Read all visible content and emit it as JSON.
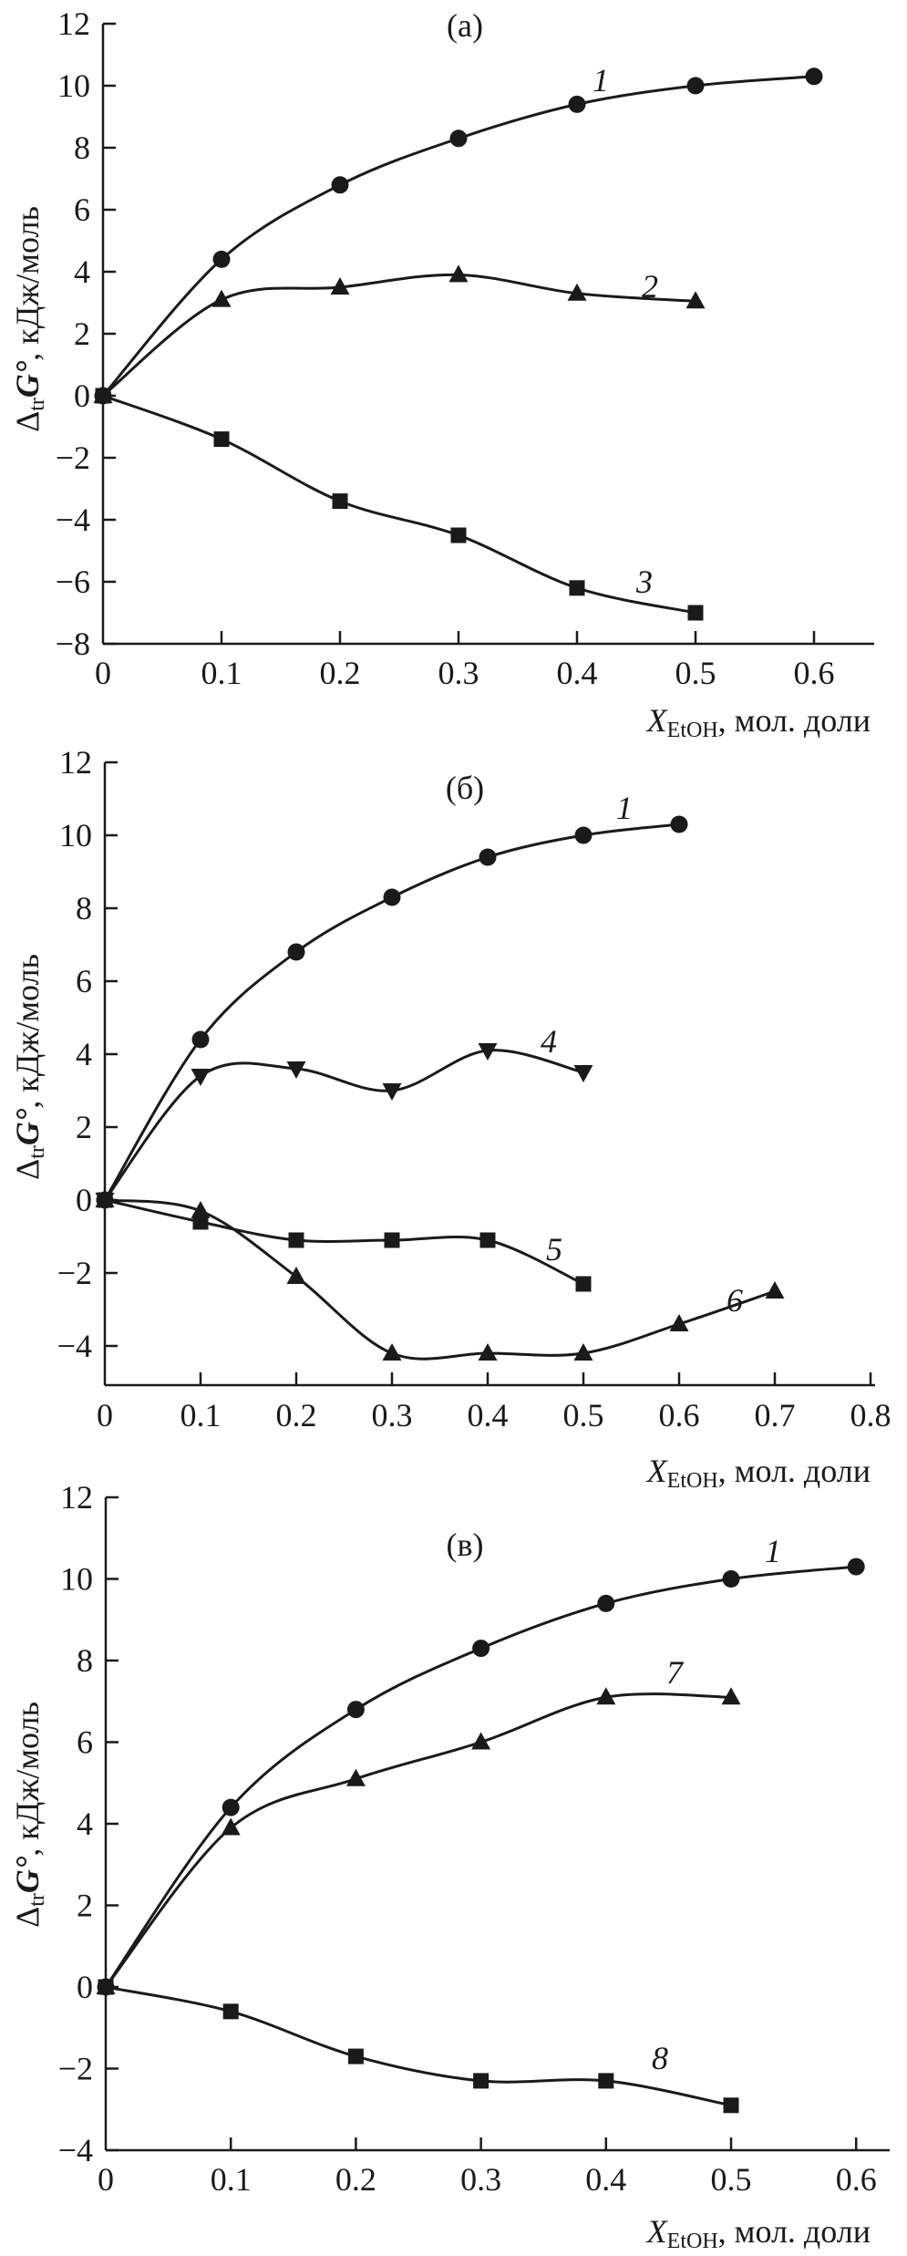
{
  "chart_data": [
    {
      "type": "line",
      "panel_label": "(а)",
      "ylabel": {
        "delta": "Δ",
        "sub": "tr",
        "main": "G°",
        "unit": ", кДж/моль"
      },
      "xlabel": {
        "main": "X",
        "sub": "EtOH",
        "unit": ", мол. доли"
      },
      "xlim": [
        0,
        0.65
      ],
      "ylim": [
        -8,
        12
      ],
      "xticks": [
        "0",
        "0.1",
        "0.2",
        "0.3",
        "0.4",
        "0.5",
        "0.6"
      ],
      "yticks": [
        "−8",
        "−6",
        "−4",
        "−2",
        "0",
        "2",
        "4",
        "6",
        "8",
        "10",
        "12"
      ],
      "grid": false,
      "series": [
        {
          "name": "1",
          "marker": "circle",
          "x": [
            0,
            0.1,
            0.2,
            0.3,
            0.4,
            0.5,
            0.6
          ],
          "y": [
            0,
            4.4,
            6.8,
            8.3,
            9.4,
            10.0,
            10.3
          ]
        },
        {
          "name": "2",
          "marker": "triangle-up",
          "x": [
            0,
            0.1,
            0.2,
            0.3,
            0.4,
            0.5
          ],
          "y": [
            0,
            3.1,
            3.5,
            3.9,
            3.3,
            3.05
          ]
        },
        {
          "name": "3",
          "marker": "square",
          "x": [
            0,
            0.1,
            0.2,
            0.3,
            0.4,
            0.5
          ],
          "y": [
            0,
            -1.4,
            -3.4,
            -4.5,
            -6.2,
            -7.0
          ]
        }
      ]
    },
    {
      "type": "line",
      "panel_label": "(б)",
      "ylabel": {
        "delta": "Δ",
        "sub": "tr",
        "main": "G°",
        "unit": ", кДж/моль"
      },
      "xlabel": {
        "main": "X",
        "sub": "EtOH",
        "unit": ", мол. доли"
      },
      "xlim": [
        0,
        0.8
      ],
      "ylim": [
        -5,
        12
      ],
      "xticks": [
        "0",
        "0.1",
        "0.2",
        "0.3",
        "0.4",
        "0.5",
        "0.6",
        "0.7",
        "0.8"
      ],
      "yticks": [
        "−4",
        "−2",
        "0",
        "2",
        "4",
        "6",
        "8",
        "10",
        "12"
      ],
      "grid": false,
      "series": [
        {
          "name": "1",
          "marker": "circle",
          "x": [
            0,
            0.1,
            0.2,
            0.3,
            0.4,
            0.5,
            0.6
          ],
          "y": [
            0,
            4.4,
            6.8,
            8.3,
            9.4,
            10.0,
            10.3
          ]
        },
        {
          "name": "4",
          "marker": "triangle-down",
          "x": [
            0,
            0.1,
            0.2,
            0.3,
            0.4,
            0.5
          ],
          "y": [
            0,
            3.4,
            3.6,
            3.0,
            4.1,
            3.5
          ]
        },
        {
          "name": "5",
          "marker": "square",
          "x": [
            0,
            0.1,
            0.2,
            0.3,
            0.4,
            0.5
          ],
          "y": [
            0,
            -0.6,
            -1.1,
            -1.1,
            -1.1,
            -2.3
          ]
        },
        {
          "name": "6",
          "marker": "triangle-up",
          "x": [
            0,
            0.1,
            0.2,
            0.3,
            0.4,
            0.5,
            0.6,
            0.7
          ],
          "y": [
            0,
            -0.3,
            -2.1,
            -4.2,
            -4.2,
            -4.2,
            -3.4,
            -2.5
          ]
        }
      ]
    },
    {
      "type": "line",
      "panel_label": "(в)",
      "ylabel": {
        "delta": "Δ",
        "sub": "tr",
        "main": "G°",
        "unit": ", кДж/моль"
      },
      "xlabel": {
        "main": "X",
        "sub": "EtOH",
        "unit": ", мол. доли"
      },
      "xlim": [
        0,
        0.63
      ],
      "ylim": [
        -4,
        12
      ],
      "xticks": [
        "0",
        "0.1",
        "0.2",
        "0.3",
        "0.4",
        "0.5",
        "0.6"
      ],
      "yticks": [
        "−4",
        "−2",
        "0",
        "2",
        "4",
        "6",
        "8",
        "10",
        "12"
      ],
      "grid": false,
      "series": [
        {
          "name": "1",
          "marker": "circle",
          "x": [
            0,
            0.1,
            0.2,
            0.3,
            0.4,
            0.5,
            0.6
          ],
          "y": [
            0,
            4.4,
            6.8,
            8.3,
            9.4,
            10.0,
            10.3
          ]
        },
        {
          "name": "7",
          "marker": "triangle-up",
          "x": [
            0,
            0.1,
            0.2,
            0.3,
            0.4,
            0.5
          ],
          "y": [
            0,
            3.9,
            5.1,
            6.0,
            7.1,
            7.1
          ]
        },
        {
          "name": "8",
          "marker": "square",
          "x": [
            0,
            0.1,
            0.2,
            0.3,
            0.4,
            0.5
          ],
          "y": [
            0,
            -0.6,
            -1.7,
            -2.3,
            -2.3,
            -2.9
          ]
        }
      ]
    }
  ]
}
